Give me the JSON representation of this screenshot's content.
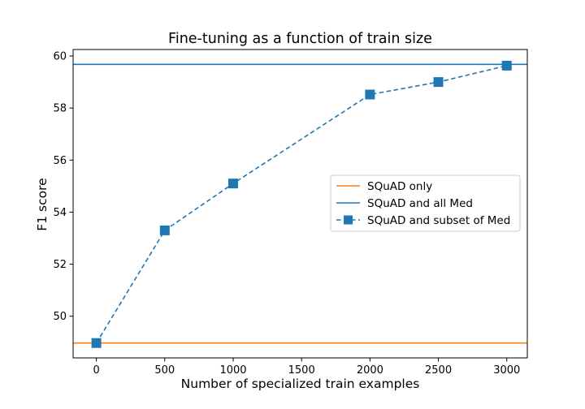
{
  "chart_data": {
    "type": "line",
    "title": "Fine-tuning as a function of train size",
    "xlabel": "Number of specialized train examples",
    "ylabel": "F1 score",
    "xlim": [
      -170,
      3150
    ],
    "ylim": [
      48.4,
      60.25
    ],
    "xticks": [
      0,
      500,
      1000,
      1500,
      2000,
      2500,
      3000
    ],
    "yticks": [
      50,
      52,
      54,
      56,
      58,
      60
    ],
    "grid": false,
    "legend_position": "center-right",
    "series": [
      {
        "name": "SQuAD only",
        "kind": "hline",
        "y": 48.97,
        "color": "#ff7f0e",
        "linestyle": "solid",
        "marker": "none"
      },
      {
        "name": "SQuAD and all Med",
        "kind": "hline",
        "y": 59.68,
        "color": "#1f77b4",
        "linestyle": "solid",
        "marker": "none"
      },
      {
        "name": "SQuAD and subset of Med",
        "kind": "line",
        "x": [
          0,
          500,
          1000,
          2000,
          2500,
          3000
        ],
        "y": [
          48.97,
          53.3,
          55.1,
          58.52,
          59.0,
          59.63
        ],
        "color": "#1f77b4",
        "linestyle": "dashed",
        "marker": "square"
      }
    ]
  }
}
